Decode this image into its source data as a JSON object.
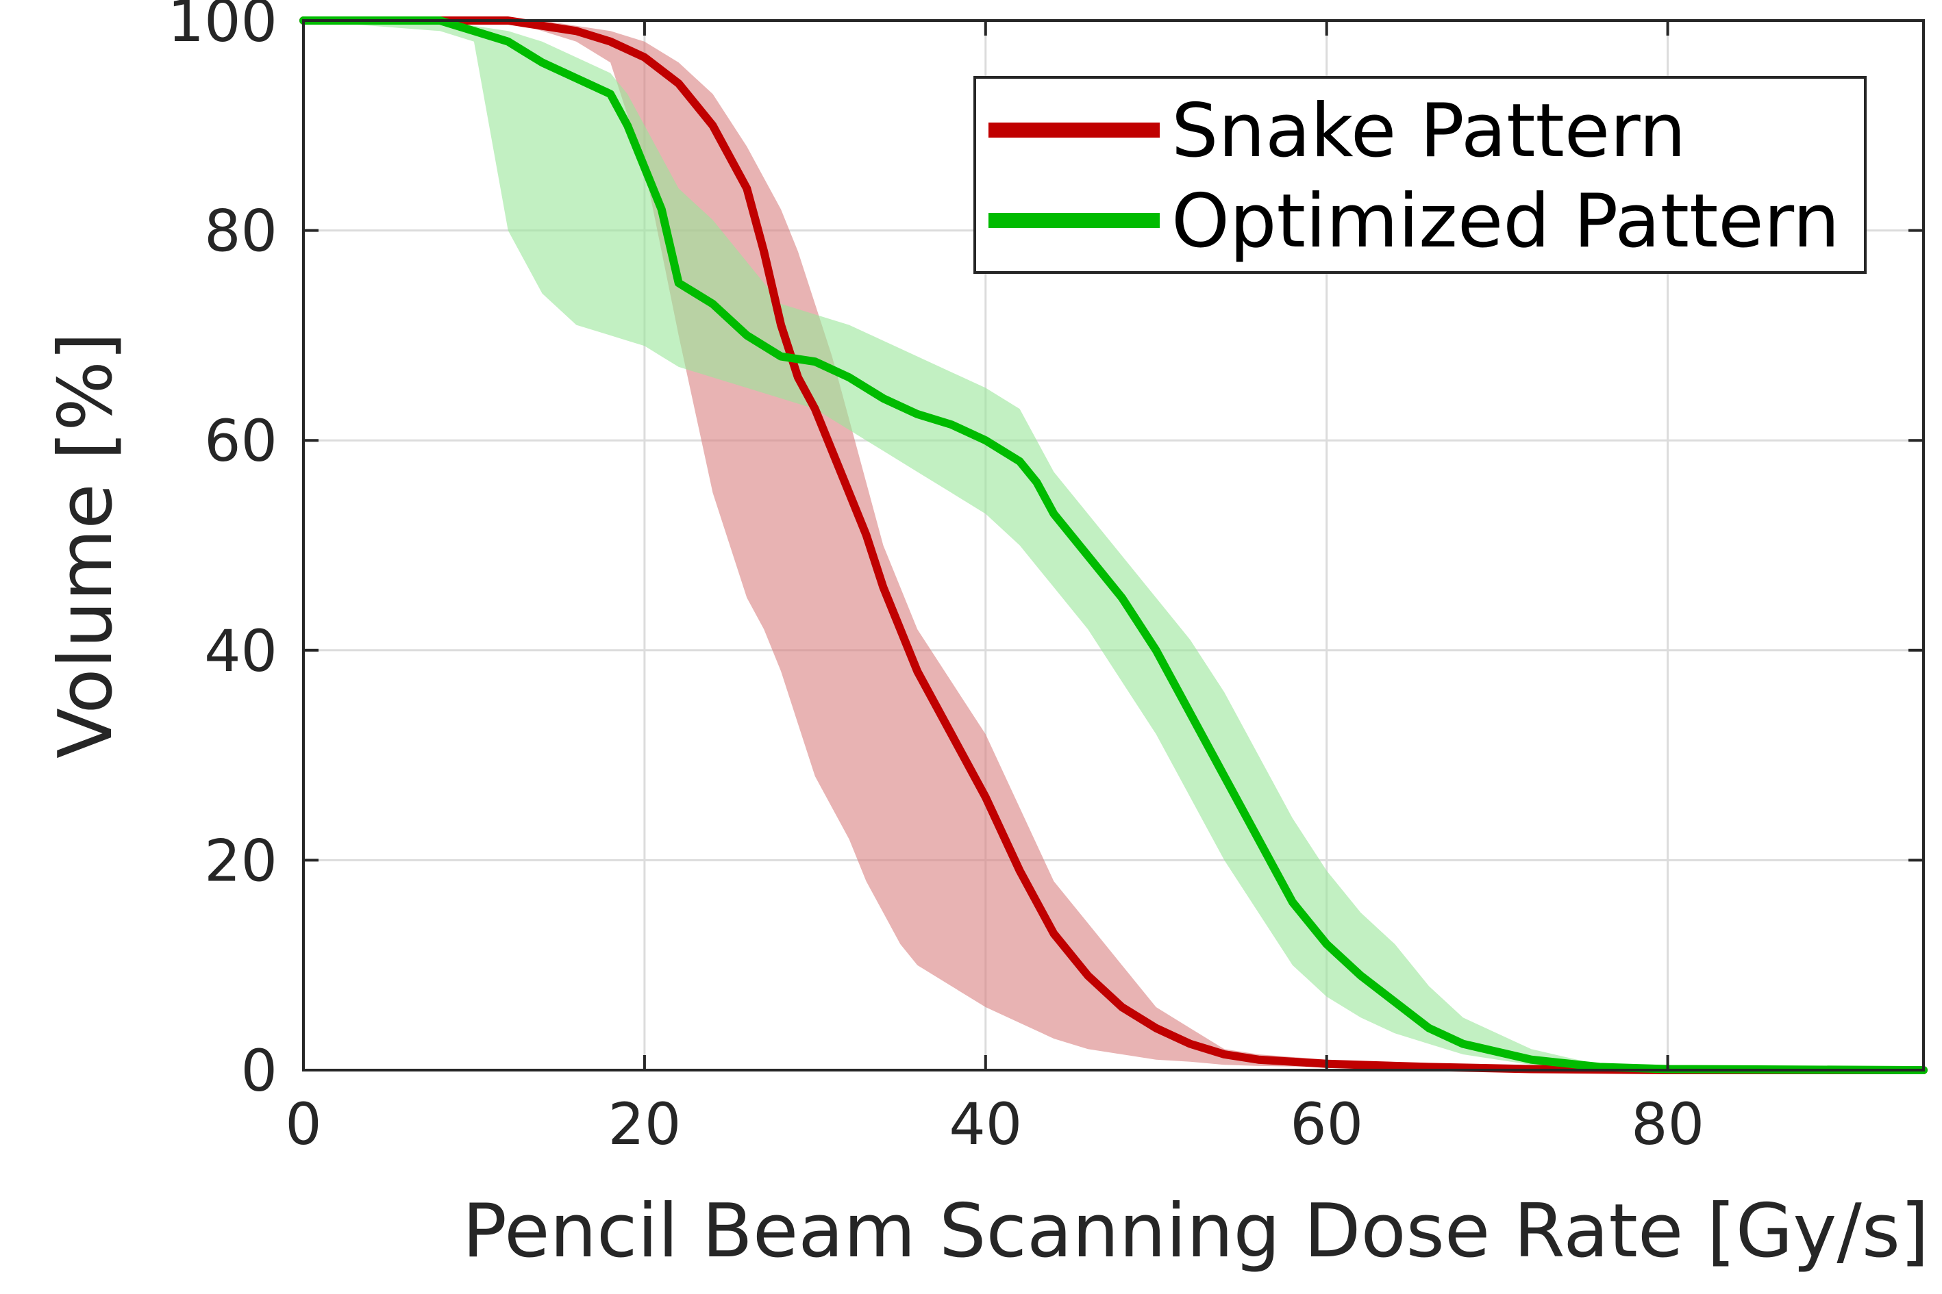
{
  "chart_data": {
    "type": "line",
    "xlabel": "Pencil Beam Scanning Dose Rate [Gy/s]",
    "ylabel": "Volume [%]",
    "xlim": [
      0,
      95
    ],
    "ylim": [
      0,
      100
    ],
    "xticks": [
      0,
      20,
      40,
      60,
      80
    ],
    "yticks": [
      0,
      20,
      40,
      60,
      80,
      100
    ],
    "grid": true,
    "legend_position": "top-right",
    "series": [
      {
        "name": "Snake Pattern",
        "color": "#c00000",
        "band_color": "#d98080",
        "x": [
          0,
          10,
          12,
          14,
          16,
          18,
          20,
          22,
          24,
          26,
          27,
          28,
          29,
          30,
          31,
          32,
          33,
          34,
          35,
          36,
          38,
          40,
          42,
          44,
          46,
          48,
          50,
          52,
          54,
          56,
          60,
          66,
          72,
          80,
          95
        ],
        "y": [
          100,
          100,
          100,
          99.5,
          99,
          98,
          96.5,
          94,
          90,
          84,
          78,
          71,
          66,
          63,
          59,
          55,
          51,
          46,
          42,
          38,
          32,
          26,
          19,
          13,
          9,
          6,
          4,
          2.5,
          1.5,
          1,
          0.6,
          0.3,
          0.1,
          0,
          0
        ],
        "band_upper": [
          100,
          100,
          100,
          100,
          99.5,
          99,
          98,
          96,
          93,
          88,
          85,
          82,
          78,
          73,
          68,
          62,
          56,
          50,
          46,
          42,
          37,
          32,
          25,
          18,
          14,
          10,
          6,
          4,
          2,
          1.5,
          1,
          0.5,
          0.2,
          0,
          0
        ],
        "band_lower": [
          100,
          100,
          100,
          99,
          98,
          96,
          86,
          70,
          55,
          45,
          42,
          38,
          33,
          28,
          25,
          22,
          18,
          15,
          12,
          10,
          8,
          6,
          4.5,
          3,
          2,
          1.5,
          1,
          0.8,
          0.5,
          0.4,
          0.3,
          0.1,
          0,
          0,
          0
        ]
      },
      {
        "name": "Optimized Pattern",
        "color": "#00bb00",
        "band_color": "#99e699",
        "x": [
          0,
          8,
          10,
          12,
          14,
          16,
          18,
          19,
          20,
          21,
          22,
          24,
          26,
          28,
          30,
          32,
          34,
          36,
          38,
          40,
          42,
          43,
          44,
          46,
          48,
          50,
          52,
          54,
          56,
          58,
          60,
          62,
          64,
          66,
          68,
          72,
          76,
          80,
          95
        ],
        "y": [
          100,
          100,
          99,
          98,
          96,
          94.5,
          93,
          90,
          86,
          82,
          75,
          73,
          70,
          68,
          67.5,
          66,
          64,
          62.5,
          61.5,
          60,
          58,
          56,
          53,
          49,
          45,
          40,
          34,
          28,
          22,
          16,
          12,
          9,
          6.5,
          4,
          2.5,
          1,
          0.3,
          0.1,
          0
        ],
        "band_upper": [
          100,
          100,
          99.5,
          99,
          98,
          96.5,
          95,
          93,
          90,
          87,
          84,
          81,
          77,
          73,
          72,
          71,
          69.5,
          68,
          66.5,
          65,
          63,
          60,
          57,
          53,
          49,
          45,
          41,
          36,
          30,
          24,
          19,
          15,
          12,
          8,
          5,
          2,
          0.5,
          0.2,
          0
        ],
        "band_lower": [
          100,
          99,
          98,
          80,
          74,
          71,
          70,
          69.5,
          69,
          68,
          67,
          66,
          65,
          64,
          63,
          61,
          59,
          57,
          55,
          53,
          50,
          48,
          46,
          42,
          37,
          32,
          26,
          20,
          15,
          10,
          7,
          5,
          3.5,
          2.5,
          1.5,
          0.5,
          0.2,
          0,
          0
        ]
      }
    ]
  }
}
